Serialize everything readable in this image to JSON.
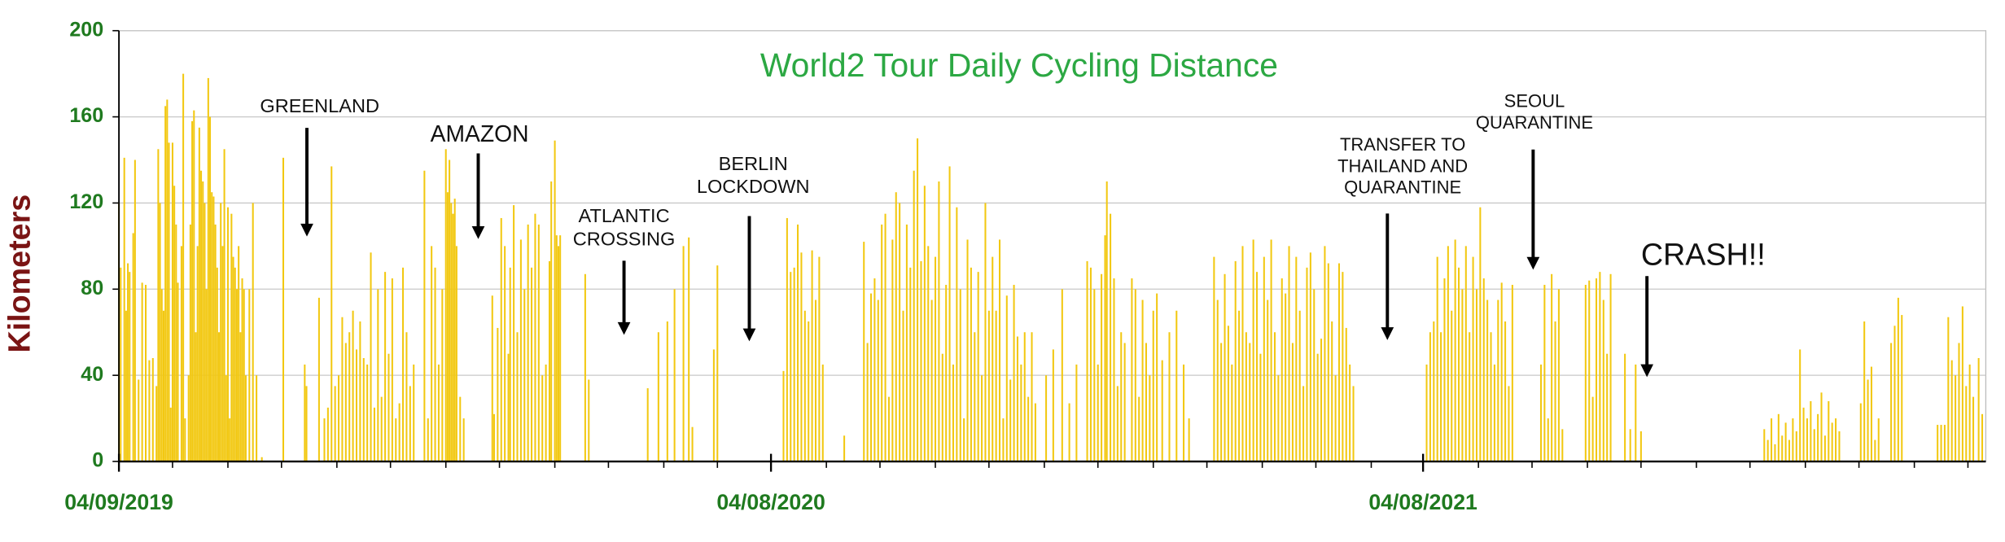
{
  "chart_data": {
    "type": "bar",
    "title": "World2 Tour Daily Cycling Distance",
    "y_label": "Kilometers",
    "color": "#f2c811",
    "grid": true,
    "xlim": [
      0,
      1045
    ],
    "ylim": [
      0,
      200
    ],
    "yticks": [
      0,
      40,
      80,
      120,
      160,
      200
    ],
    "xticks": [
      {
        "value": 0,
        "label": "04/09/2019"
      },
      {
        "value": 365,
        "label": "04/08/2020"
      },
      {
        "value": 730,
        "label": "04/08/2021"
      }
    ],
    "xminorticks": [
      30,
      61,
      91,
      122,
      152,
      183,
      213,
      244,
      274,
      305,
      335,
      396,
      426,
      457,
      487,
      518,
      548,
      579,
      609,
      640,
      670,
      701,
      761,
      791,
      822,
      852,
      883,
      913,
      944,
      974,
      1005,
      1035
    ],
    "annotations": [
      {
        "lines": [
          "GREENLAND"
        ]
      },
      {
        "lines": [
          "AMAZON"
        ]
      },
      {
        "lines": [
          "ATLANTIC",
          "CROSSING"
        ]
      },
      {
        "lines": [
          "BERLIN",
          "LOCKDOWN"
        ]
      },
      {
        "lines": [
          "TRANSFER TO",
          "THAILAND AND",
          "QUARANTINE"
        ]
      },
      {
        "lines": [
          "SEOUL",
          "QUARANTINE"
        ]
      },
      {
        "lines": [
          "CRASH!!"
        ]
      }
    ],
    "x": [
      0,
      1,
      3,
      4,
      5,
      6,
      8,
      9,
      11,
      13,
      15,
      17,
      19,
      21,
      22,
      23,
      24,
      25,
      26,
      27,
      28,
      29,
      30,
      31,
      32,
      33,
      35,
      36,
      37,
      39,
      40,
      41,
      42,
      43,
      44,
      45,
      46,
      47,
      48,
      49,
      50,
      51,
      52,
      53,
      54,
      55,
      56,
      57,
      58,
      59,
      60,
      61,
      62,
      63,
      64,
      65,
      66,
      67,
      68,
      69,
      70,
      71,
      73,
      75,
      77,
      80,
      92,
      104,
      105,
      112,
      115,
      117,
      119,
      121,
      123,
      125,
      127,
      129,
      131,
      133,
      135,
      137,
      139,
      141,
      143,
      145,
      147,
      149,
      151,
      153,
      155,
      157,
      159,
      161,
      163,
      165,
      171,
      173,
      175,
      177,
      179,
      181,
      183,
      184,
      185,
      186,
      187,
      188,
      189,
      191,
      193,
      209,
      210,
      212,
      214,
      216,
      218,
      219,
      221,
      223,
      225,
      227,
      229,
      231,
      233,
      235,
      237,
      239,
      241,
      242,
      244,
      245,
      246,
      247,
      261,
      263,
      296,
      302,
      307,
      311,
      316,
      319,
      321,
      333,
      335,
      372,
      374,
      376,
      378,
      380,
      382,
      384,
      386,
      388,
      390,
      392,
      394,
      406,
      417,
      419,
      421,
      423,
      425,
      427,
      429,
      431,
      433,
      435,
      437,
      439,
      441,
      443,
      445,
      447,
      449,
      451,
      453,
      455,
      457,
      459,
      461,
      463,
      465,
      467,
      469,
      471,
      473,
      475,
      477,
      479,
      481,
      483,
      485,
      487,
      489,
      491,
      493,
      495,
      497,
      499,
      501,
      503,
      505,
      507,
      509,
      511,
      513,
      519,
      523,
      528,
      532,
      536,
      542,
      544,
      546,
      548,
      550,
      552,
      553,
      555,
      557,
      559,
      561,
      563,
      567,
      569,
      571,
      573,
      575,
      577,
      579,
      581,
      584,
      588,
      592,
      596,
      599,
      613,
      615,
      617,
      619,
      621,
      623,
      625,
      627,
      629,
      631,
      633,
      635,
      637,
      639,
      641,
      643,
      645,
      647,
      649,
      651,
      653,
      655,
      657,
      659,
      661,
      663,
      665,
      667,
      669,
      671,
      673,
      675,
      677,
      679,
      681,
      683,
      685,
      687,
      689,
      691,
      732,
      734,
      736,
      738,
      740,
      742,
      744,
      746,
      748,
      750,
      752,
      754,
      756,
      758,
      760,
      762,
      764,
      766,
      768,
      770,
      772,
      774,
      776,
      778,
      780,
      796,
      798,
      800,
      802,
      804,
      806,
      808,
      821,
      823,
      825,
      827,
      829,
      831,
      833,
      835,
      843,
      846,
      849,
      852,
      921,
      923,
      925,
      927,
      929,
      931,
      933,
      935,
      937,
      939,
      941,
      943,
      945,
      947,
      949,
      951,
      953,
      955,
      957,
      959,
      961,
      963,
      975,
      977,
      979,
      981,
      983,
      985,
      992,
      994,
      996,
      998,
      1018,
      1020,
      1022,
      1024,
      1026,
      1028,
      1030,
      1032,
      1034,
      1036,
      1038,
      1041,
      1043
    ],
    "values": [
      120,
      90,
      141,
      70,
      92,
      88,
      106,
      140,
      38,
      83,
      82,
      47,
      48,
      35,
      145,
      120,
      80,
      70,
      165,
      168,
      148,
      25,
      148,
      128,
      110,
      83,
      100,
      180,
      20,
      40,
      110,
      158,
      163,
      60,
      100,
      155,
      135,
      130,
      120,
      80,
      178,
      160,
      125,
      123,
      110,
      90,
      60,
      120,
      100,
      145,
      40,
      118,
      20,
      115,
      95,
      90,
      80,
      100,
      60,
      85,
      80,
      40,
      80,
      120,
      40,
      2,
      141,
      45,
      35,
      76,
      20,
      25,
      137,
      35,
      40,
      67,
      55,
      60,
      70,
      52,
      65,
      48,
      45,
      97,
      25,
      80,
      30,
      88,
      50,
      85,
      20,
      27,
      90,
      60,
      35,
      45,
      135,
      20,
      100,
      90,
      45,
      80,
      145,
      125,
      140,
      120,
      115,
      122,
      100,
      30,
      20,
      77,
      22,
      62,
      113,
      100,
      50,
      90,
      119,
      60,
      103,
      80,
      110,
      90,
      115,
      110,
      40,
      45,
      93,
      130,
      149,
      105,
      100,
      105,
      87,
      38,
      34,
      60,
      65,
      80,
      100,
      104,
      16,
      52,
      91,
      42,
      113,
      88,
      90,
      110,
      97,
      70,
      65,
      98,
      75,
      95,
      45,
      12,
      102,
      55,
      78,
      85,
      75,
      110,
      115,
      30,
      103,
      125,
      120,
      70,
      110,
      90,
      135,
      150,
      93,
      128,
      100,
      75,
      95,
      130,
      50,
      82,
      137,
      45,
      118,
      80,
      20,
      103,
      90,
      60,
      88,
      40,
      120,
      70,
      95,
      70,
      103,
      20,
      77,
      38,
      82,
      58,
      45,
      60,
      30,
      60,
      27,
      40,
      52,
      80,
      27,
      45,
      93,
      90,
      80,
      45,
      87,
      105,
      130,
      115,
      85,
      35,
      60,
      55,
      85,
      80,
      30,
      75,
      55,
      40,
      70,
      78,
      47,
      60,
      70,
      45,
      20,
      95,
      75,
      55,
      87,
      63,
      45,
      93,
      70,
      100,
      60,
      55,
      103,
      88,
      50,
      95,
      75,
      103,
      60,
      40,
      85,
      78,
      100,
      55,
      95,
      70,
      35,
      90,
      97,
      80,
      50,
      57,
      100,
      92,
      65,
      40,
      92,
      88,
      62,
      45,
      35,
      45,
      60,
      65,
      95,
      60,
      85,
      100,
      70,
      103,
      90,
      80,
      100,
      60,
      95,
      80,
      118,
      85,
      75,
      60,
      45,
      75,
      83,
      65,
      35,
      82,
      45,
      82,
      20,
      87,
      65,
      80,
      15,
      82,
      84,
      30,
      85,
      88,
      75,
      50,
      87,
      50,
      15,
      45,
      14,
      15,
      10,
      20,
      8,
      22,
      12,
      18,
      10,
      20,
      14,
      52,
      25,
      20,
      28,
      15,
      22,
      32,
      12,
      28,
      18,
      20,
      14,
      27,
      65,
      38,
      44,
      10,
      20,
      55,
      63,
      76,
      68,
      17,
      17,
      17,
      67,
      47,
      40,
      55,
      72,
      35,
      45,
      30,
      48,
      22
    ]
  }
}
